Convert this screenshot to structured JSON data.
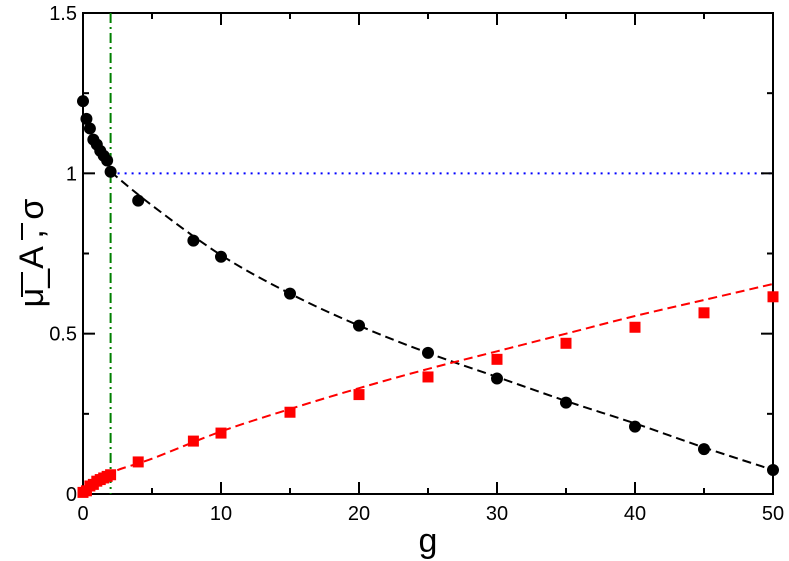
{
  "chart_data": {
    "type": "scatter",
    "xlabel": "g",
    "ylabel": "μ_A , σ",
    "xlim": [
      0,
      50
    ],
    "ylim": [
      0,
      1.5
    ],
    "x_ticks": [
      0,
      10,
      20,
      30,
      40,
      50
    ],
    "x_tick_labels": [
      "0",
      "10",
      "20",
      "30",
      "40",
      "50"
    ],
    "y_ticks": [
      0,
      0.5,
      1,
      1.5
    ],
    "y_tick_labels": [
      "0",
      "0.5",
      "1",
      "1.5"
    ],
    "grid": false,
    "series": [
      {
        "marker": "circle",
        "color": "#000000",
        "x": [
          0,
          0.25,
          0.5,
          0.75,
          1.0,
          1.25,
          1.5,
          1.75,
          2.0,
          4,
          8,
          10,
          15,
          20,
          25,
          30,
          35,
          40,
          45,
          50
        ],
        "y": [
          1.225,
          1.17,
          1.14,
          1.105,
          1.09,
          1.07,
          1.055,
          1.04,
          1.005,
          0.915,
          0.79,
          0.74,
          0.625,
          0.525,
          0.44,
          0.36,
          0.285,
          0.21,
          0.14,
          0.075
        ]
      },
      {
        "marker": "square",
        "color": "#ff0000",
        "x": [
          0,
          0.25,
          0.5,
          0.75,
          1.0,
          1.25,
          1.5,
          1.75,
          2.0,
          4,
          8,
          10,
          15,
          20,
          25,
          30,
          35,
          40,
          45,
          50
        ],
        "y": [
          0.005,
          0.01,
          0.025,
          0.03,
          0.04,
          0.045,
          0.05,
          0.055,
          0.06,
          0.1,
          0.165,
          0.19,
          0.255,
          0.31,
          0.365,
          0.42,
          0.47,
          0.52,
          0.565,
          0.615
        ]
      }
    ],
    "fit_lines": [
      {
        "style": "dashed",
        "color": "#000000",
        "x": [
          2,
          5,
          10,
          15,
          20,
          25,
          30,
          35,
          40,
          45,
          50
        ],
        "y": [
          1.005,
          0.9,
          0.745,
          0.625,
          0.525,
          0.44,
          0.365,
          0.29,
          0.22,
          0.145,
          0.075
        ]
      },
      {
        "style": "dashed",
        "color": "#ff0000",
        "x": [
          0,
          2,
          5,
          10,
          15,
          20,
          25,
          30,
          35,
          40,
          45,
          50
        ],
        "y": [
          0,
          0.065,
          0.11,
          0.195,
          0.265,
          0.33,
          0.39,
          0.445,
          0.5,
          0.555,
          0.605,
          0.655
        ]
      }
    ],
    "reference_lines": [
      {
        "orientation": "horizontal",
        "value": 1,
        "from": 2,
        "to": 50,
        "style": "dotted",
        "color": "#0000ff"
      },
      {
        "orientation": "vertical",
        "value": 2,
        "style": "dash-dot",
        "color": "#008000"
      }
    ]
  }
}
